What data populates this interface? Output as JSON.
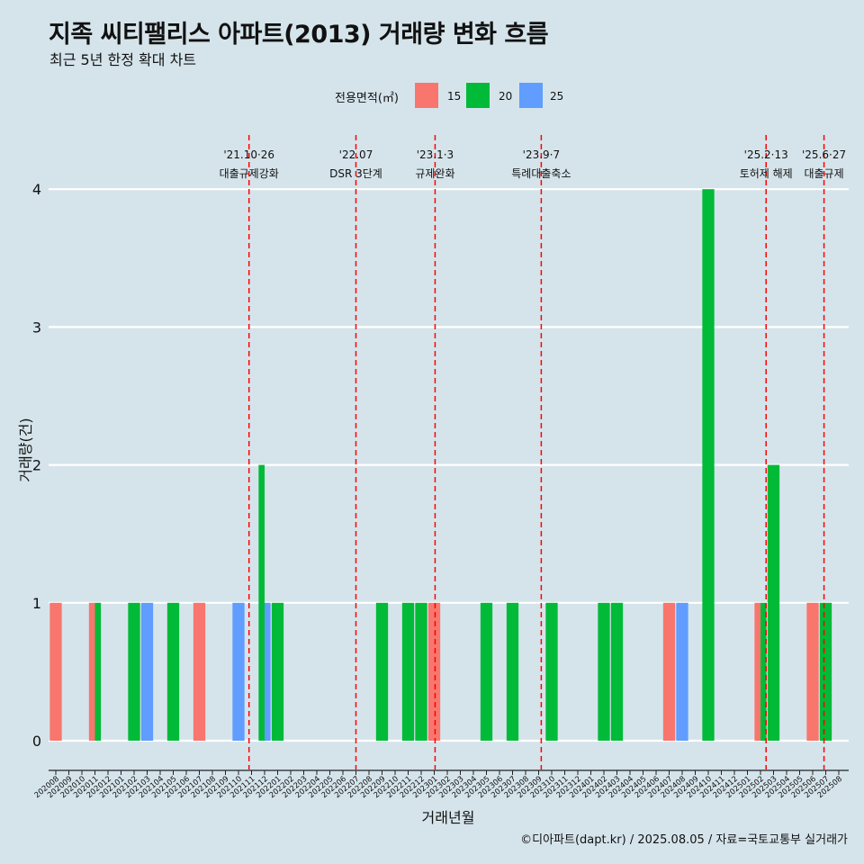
{
  "title": "지족 씨티팰리스 아파트(2013) 거래량 변화 흐름",
  "subtitle": "최근 5년 한정 확대 차트",
  "legend": {
    "title": "전용면적(㎡)",
    "items": [
      {
        "label": "15",
        "color": "#f8766d"
      },
      {
        "label": "20",
        "color": "#00ba38"
      },
      {
        "label": "25",
        "color": "#619cff"
      }
    ]
  },
  "credit": "©디아파트(dapt.kr) / 2025.08.05 / 자료=국토교통부 실거래가",
  "chart_data": {
    "type": "bar",
    "xlabel": "거래년월",
    "ylabel": "거래량(건)",
    "ylim": [
      0,
      4
    ],
    "yticks": [
      0,
      1,
      2,
      3,
      4
    ],
    "grid": "horizontal",
    "legend_position": "top",
    "categories": [
      "202008",
      "202009",
      "202010",
      "202011",
      "202012",
      "202101",
      "202102",
      "202103",
      "202104",
      "202105",
      "202106",
      "202107",
      "202108",
      "202109",
      "202110",
      "202111",
      "202112",
      "202201",
      "202202",
      "202203",
      "202204",
      "202205",
      "202206",
      "202207",
      "202208",
      "202209",
      "202210",
      "202211",
      "202212",
      "202301",
      "202302",
      "202303",
      "202304",
      "202305",
      "202306",
      "202307",
      "202308",
      "202309",
      "202310",
      "202311",
      "202312",
      "202401",
      "202402",
      "202403",
      "202404",
      "202405",
      "202406",
      "202407",
      "202408",
      "202409",
      "202410",
      "202411",
      "202412",
      "202501",
      "202502",
      "202503",
      "202504",
      "202505",
      "202506",
      "202507",
      "202508"
    ],
    "series": [
      {
        "name": "15",
        "color": "#f8766d",
        "values": [
          1,
          0,
          0,
          1,
          0,
          0,
          0,
          0,
          0,
          0,
          0,
          1,
          0,
          0,
          0,
          0,
          0,
          0,
          0,
          0,
          0,
          0,
          0,
          0,
          0,
          0,
          0,
          0,
          0,
          1,
          0,
          0,
          0,
          0,
          0,
          0,
          0,
          0,
          0,
          0,
          0,
          0,
          0,
          0,
          0,
          0,
          0,
          1,
          0,
          0,
          0,
          0,
          0,
          0,
          1,
          0,
          0,
          0,
          1,
          0,
          0
        ]
      },
      {
        "name": "20",
        "color": "#00ba38",
        "values": [
          0,
          0,
          0,
          1,
          0,
          0,
          1,
          0,
          0,
          1,
          0,
          0,
          0,
          0,
          0,
          0,
          2,
          1,
          0,
          0,
          0,
          0,
          0,
          0,
          0,
          1,
          0,
          1,
          1,
          0,
          0,
          0,
          0,
          1,
          0,
          1,
          0,
          0,
          1,
          0,
          0,
          0,
          1,
          1,
          0,
          0,
          0,
          0,
          0,
          0,
          4,
          0,
          0,
          0,
          1,
          2,
          0,
          0,
          0,
          1,
          0
        ]
      },
      {
        "name": "25",
        "color": "#619cff",
        "values": [
          0,
          0,
          0,
          0,
          0,
          0,
          0,
          1,
          0,
          0,
          0,
          0,
          0,
          0,
          1,
          0,
          1,
          0,
          0,
          0,
          0,
          0,
          0,
          0,
          0,
          0,
          0,
          0,
          0,
          0,
          0,
          0,
          0,
          0,
          0,
          0,
          0,
          0,
          0,
          0,
          0,
          0,
          0,
          0,
          0,
          0,
          0,
          0,
          1,
          0,
          0,
          0,
          0,
          0,
          0,
          0,
          0,
          0,
          0,
          0,
          0
        ]
      }
    ],
    "annotations": [
      {
        "date": "2021-10-26",
        "line1": "'21.10·26",
        "line2": "대출규제강화"
      },
      {
        "date": "2022-07-01",
        "line1": "'22.07",
        "line2": "DSR 3단계"
      },
      {
        "date": "2023-01-03",
        "line1": "'23.1·3",
        "line2": "규제완화"
      },
      {
        "date": "2023-09-07",
        "line1": "'23.9·7",
        "line2": "특례대출축소"
      },
      {
        "date": "2025-02-13",
        "line1": "'25.2·13",
        "line2": "토허제 해제"
      },
      {
        "date": "2025-06-27",
        "line1": "'25.6·27",
        "line2": "대출규제"
      }
    ]
  }
}
